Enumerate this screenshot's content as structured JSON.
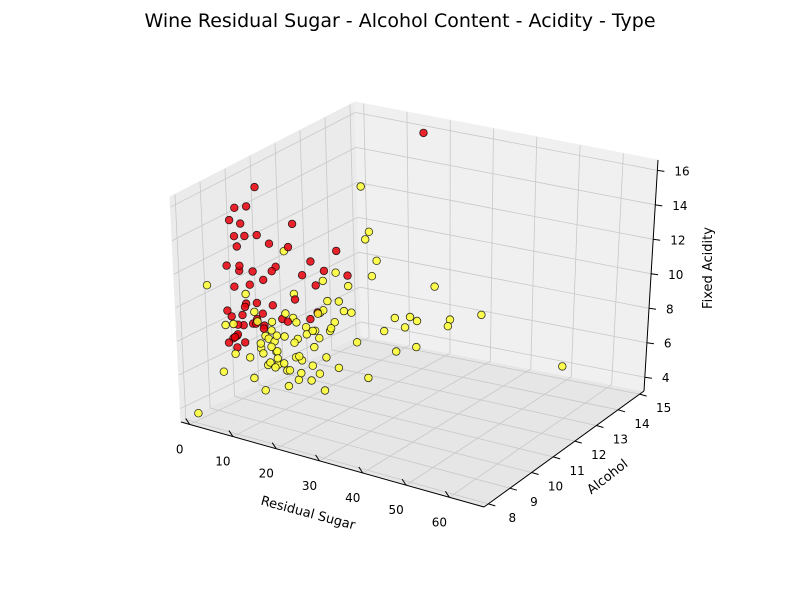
{
  "chart_data": {
    "type": "scatter",
    "projection": "3d",
    "title": "Wine Residual Sugar - Alcohol Content - Acidity - Type",
    "xlabel": "Residual Sugar",
    "ylabel": "Alcohol",
    "zlabel": "Fixed Acidity",
    "xticks": [
      "0",
      "10",
      "20",
      "30",
      "40",
      "50",
      "60"
    ],
    "yticks": [
      "8",
      "9",
      "10",
      "11",
      "12",
      "13",
      "14",
      "15"
    ],
    "zticks": [
      "4",
      "6",
      "8",
      "10",
      "12",
      "14",
      "16"
    ],
    "xlim": [
      -2,
      68
    ],
    "ylim": [
      7.8,
      15.2
    ],
    "zlim": [
      3.2,
      16.6
    ],
    "grid": true,
    "colors": {
      "red": "#e8000b",
      "white": "#ffff33",
      "edge": "#000000"
    },
    "series": [
      {
        "color": "#e8000b",
        "points": [
          [
            2.2,
            9.4,
            7.4
          ],
          [
            2.0,
            9.8,
            7.8
          ],
          [
            1.9,
            10.2,
            7.6
          ],
          [
            2.6,
            9.6,
            11.2
          ],
          [
            2.1,
            9.5,
            7.4
          ],
          [
            1.8,
            9.4,
            7.3
          ],
          [
            6.1,
            9.9,
            7.8
          ],
          [
            1.6,
            10.0,
            8.9
          ],
          [
            2.3,
            9.5,
            7.5
          ],
          [
            2.5,
            10.5,
            8.0
          ],
          [
            1.9,
            9.2,
            7.2
          ],
          [
            2.4,
            9.7,
            8.5
          ],
          [
            2.0,
            11.0,
            8.1
          ],
          [
            1.7,
            10.4,
            7.7
          ],
          [
            3.6,
            9.3,
            8.3
          ],
          [
            2.2,
            9.8,
            6.8
          ],
          [
            1.8,
            11.4,
            7.0
          ],
          [
            2.1,
            12.2,
            9.0
          ],
          [
            2.8,
            10.1,
            10.8
          ],
          [
            1.5,
            9.6,
            6.6
          ],
          [
            2.4,
            9.1,
            9.2
          ],
          [
            2.0,
            12.8,
            6.4
          ],
          [
            2.3,
            10.6,
            9.9
          ],
          [
            1.9,
            9.9,
            8.8
          ],
          [
            2.6,
            11.8,
            7.9
          ],
          [
            2.2,
            10.9,
            11.8
          ],
          [
            1.7,
            9.7,
            12.5
          ],
          [
            2.5,
            9.4,
            10.4
          ],
          [
            3.2,
            9.0,
            12.0
          ],
          [
            2.0,
            13.1,
            8.6
          ],
          [
            1.8,
            11.2,
            10.2
          ],
          [
            2.3,
            9.5,
            13.3
          ],
          [
            2.9,
            10.3,
            12.8
          ],
          [
            2.1,
            9.8,
            13.8
          ],
          [
            4.1,
            10.0,
            9.1
          ],
          [
            1.6,
            10.7,
            7.1
          ],
          [
            2.4,
            12.5,
            9.6
          ],
          [
            2.7,
            9.6,
            11.5
          ],
          [
            1.9,
            11.9,
            12.2
          ],
          [
            2.2,
            9.3,
            8.7
          ],
          [
            5.5,
            9.7,
            8.2
          ],
          [
            8.3,
            10.5,
            7.9
          ],
          [
            7.2,
            9.2,
            11.0
          ],
          [
            9.0,
            11.3,
            7.5
          ],
          [
            6.4,
            12.0,
            8.8
          ],
          [
            3.0,
            9.9,
            14.8
          ],
          [
            2.2,
            10.4,
            15.5
          ],
          [
            1.9,
            9.4,
            14.3
          ],
          [
            2.6,
            9.5,
            15.0
          ],
          [
            13.4,
            9.0,
            12.4
          ],
          [
            15.5,
            14.9,
            15.9
          ],
          [
            2.1,
            13.6,
            9.4
          ],
          [
            2.3,
            14.0,
            7.7
          ],
          [
            1.8,
            10.0,
            12.9
          ],
          [
            2.5,
            11.6,
            11.1
          ]
        ]
      },
      {
        "color": "#ffff33",
        "points": [
          [
            20.7,
            8.8,
            7.0
          ],
          [
            1.6,
            9.5,
            6.3
          ],
          [
            6.9,
            10.1,
            8.1
          ],
          [
            8.5,
            9.9,
            7.2
          ],
          [
            7.0,
            9.6,
            7.2
          ],
          [
            1.5,
            11.0,
            6.6
          ],
          [
            4.4,
            9.6,
            6.2
          ],
          [
            1.2,
            10.8,
            6.4
          ],
          [
            1.5,
            12.4,
            5.8
          ],
          [
            5.9,
            9.8,
            6.7
          ],
          [
            12.5,
            9.0,
            6.9
          ],
          [
            10.6,
            9.4,
            7.4
          ],
          [
            2.2,
            11.4,
            6.0
          ],
          [
            14.2,
            8.9,
            6.8
          ],
          [
            3.1,
            10.6,
            6.5
          ],
          [
            9.8,
            9.2,
            7.1
          ],
          [
            1.9,
            12.7,
            5.4
          ],
          [
            16.8,
            8.8,
            7.3
          ],
          [
            6.2,
            10.4,
            6.1
          ],
          [
            11.4,
            9.1,
            6.6
          ],
          [
            2.6,
            11.7,
            6.9
          ],
          [
            7.4,
            10.2,
            5.9
          ],
          [
            18.1,
            9.2,
            7.5
          ],
          [
            4.9,
            11.0,
            7.8
          ],
          [
            1.4,
            13.0,
            6.2
          ],
          [
            13.0,
            9.6,
            6.0
          ],
          [
            8.8,
            10.8,
            6.7
          ],
          [
            3.4,
            12.1,
            5.7
          ],
          [
            15.3,
            9.3,
            6.4
          ],
          [
            5.1,
            11.4,
            7.0
          ],
          [
            1.7,
            10.3,
            8.2
          ],
          [
            10.2,
            9.7,
            7.8
          ],
          [
            2.8,
            12.9,
            6.5
          ],
          [
            19.5,
            9.5,
            6.8
          ],
          [
            6.6,
            11.8,
            6.3
          ],
          [
            12.0,
            10.1,
            7.2
          ],
          [
            1.3,
            11.2,
            5.2
          ],
          [
            9.4,
            10.6,
            5.8
          ],
          [
            4.2,
            13.3,
            6.8
          ],
          [
            17.2,
            8.9,
            5.9
          ],
          [
            2.4,
            14.0,
            7.1
          ],
          [
            7.8,
            12.3,
            6.0
          ],
          [
            14.9,
            10.4,
            6.9
          ],
          [
            3.7,
            9.1,
            8.5
          ],
          [
            11.0,
            11.3,
            6.5
          ],
          [
            1.6,
            9.0,
            5.6
          ],
          [
            5.6,
            12.6,
            7.4
          ],
          [
            20.0,
            9.7,
            6.2
          ],
          [
            8.1,
            9.3,
            8.8
          ],
          [
            2.9,
            10.0,
            4.6
          ],
          [
            16.1,
            10.9,
            7.7
          ],
          [
            6.0,
            13.5,
            6.1
          ],
          [
            12.9,
            8.7,
            5.5
          ],
          [
            1.2,
            12.0,
            8.0
          ],
          [
            10.7,
            12.0,
            6.9
          ],
          [
            4.6,
            10.7,
            5.0
          ],
          [
            18.8,
            10.2,
            6.7
          ],
          [
            3.0,
            13.7,
            5.9
          ],
          [
            9.1,
            11.6,
            7.6
          ],
          [
            14.5,
            9.8,
            5.4
          ],
          [
            26.1,
            9.4,
            7.2
          ],
          [
            22.5,
            8.9,
            6.6
          ],
          [
            31.6,
            11.7,
            6.9
          ],
          [
            23.8,
            10.6,
            7.6
          ],
          [
            26.0,
            11.8,
            8.2
          ],
          [
            19.0,
            12.6,
            6.4
          ],
          [
            28.0,
            10.3,
            6.0
          ],
          [
            24.5,
            12.5,
            7.0
          ],
          [
            30.1,
            12.0,
            8.1
          ],
          [
            21.2,
            13.3,
            6.8
          ],
          [
            33.0,
            12.8,
            7.3
          ],
          [
            27.4,
            13.9,
            6.5
          ],
          [
            22.0,
            14.2,
            7.9
          ],
          [
            31.8,
            10.8,
            7.4
          ],
          [
            25.0,
            9.0,
            6.1
          ],
          [
            65.8,
            11.7,
            7.8
          ],
          [
            31.6,
            14.5,
            6.5
          ],
          [
            1.0,
            8.0,
            3.8
          ],
          [
            0.9,
            12.3,
            3.9
          ],
          [
            2.0,
            14.8,
            9.2
          ],
          [
            1.1,
            13.2,
            7.9
          ],
          [
            7.0,
            14.4,
            8.5
          ],
          [
            12.8,
            13.2,
            8.8
          ],
          [
            3.3,
            9.7,
            9.8
          ],
          [
            5.3,
            8.5,
            9.0
          ],
          [
            1.5,
            11.6,
            10.8
          ],
          [
            10.0,
            12.2,
            9.6
          ],
          [
            2.0,
            8.4,
            11.2
          ],
          [
            8.2,
            13.9,
            10.6
          ],
          [
            1.8,
            14.7,
            12.3
          ]
        ]
      }
    ]
  }
}
